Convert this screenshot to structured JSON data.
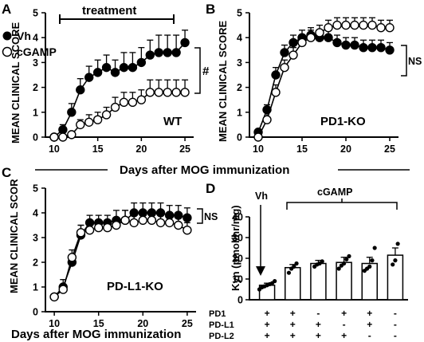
{
  "chart_data": [
    {
      "panel": "A",
      "type": "line",
      "ylabel": "MEAN CLINICAL SCORE",
      "xticks": [
        10,
        15,
        20,
        25
      ],
      "yticks": [
        0,
        1,
        2,
        3,
        4,
        5
      ],
      "xlim": [
        9,
        26
      ],
      "ylim": [
        0,
        5
      ],
      "annotation": "WT",
      "treatment_label": "treatment",
      "significance": "#",
      "legend_placement": "top-left",
      "series": [
        {
          "name": "Vh",
          "marker": "filled",
          "x": [
            10,
            11,
            12,
            13,
            14,
            15,
            16,
            17,
            18,
            19,
            20,
            21,
            22,
            23,
            24,
            25
          ],
          "y": [
            0,
            0.3,
            1.0,
            1.9,
            2.4,
            2.6,
            2.8,
            2.6,
            2.8,
            2.8,
            3.0,
            3.3,
            3.4,
            3.4,
            3.4,
            3.8
          ],
          "err": [
            0,
            0.2,
            0.35,
            0.45,
            0.45,
            0.5,
            0.5,
            0.5,
            0.6,
            0.6,
            0.6,
            0.6,
            0.7,
            0.7,
            0.7,
            0.5
          ]
        },
        {
          "name": "cGAMP",
          "marker": "open",
          "x": [
            10,
            11,
            12,
            13,
            14,
            15,
            16,
            17,
            18,
            19,
            20,
            21,
            22,
            23,
            24,
            25
          ],
          "y": [
            0,
            0,
            0.1,
            0.5,
            0.6,
            0.7,
            0.9,
            1.2,
            1.4,
            1.4,
            1.5,
            1.8,
            1.8,
            1.8,
            1.8,
            1.8
          ],
          "err": [
            0,
            0,
            0.1,
            0.2,
            0.3,
            0.3,
            0.3,
            0.4,
            0.4,
            0.4,
            0.4,
            0.5,
            0.5,
            0.5,
            0.5,
            0.5
          ]
        }
      ]
    },
    {
      "panel": "B",
      "type": "line",
      "ylabel": "MEAN CLINICAL SCORE",
      "xticks": [
        10,
        15,
        20,
        25
      ],
      "yticks": [
        0,
        1,
        2,
        3,
        4,
        5
      ],
      "xlim": [
        9,
        26
      ],
      "ylim": [
        0,
        5
      ],
      "annotation": "PD1-KO",
      "significance": "NS",
      "series": [
        {
          "name": "Vh",
          "marker": "filled",
          "x": [
            10,
            11,
            12,
            13,
            14,
            15,
            16,
            17,
            18,
            19,
            20,
            21,
            22,
            23,
            24,
            25
          ],
          "y": [
            0.2,
            1.1,
            2.5,
            3.4,
            3.8,
            4.0,
            4.1,
            4.0,
            4.0,
            3.8,
            3.7,
            3.7,
            3.6,
            3.6,
            3.6,
            3.5
          ],
          "err": [
            0.1,
            0.2,
            0.3,
            0.3,
            0.3,
            0.3,
            0.3,
            0.3,
            0.3,
            0.3,
            0.3,
            0.3,
            0.3,
            0.3,
            0.3,
            0.3
          ]
        },
        {
          "name": "cGAMP",
          "marker": "open",
          "x": [
            10,
            11,
            12,
            13,
            14,
            15,
            16,
            17,
            18,
            19,
            20,
            21,
            22,
            23,
            24,
            25
          ],
          "y": [
            0,
            0.7,
            1.8,
            2.8,
            3.3,
            3.8,
            4.0,
            4.2,
            4.4,
            4.5,
            4.5,
            4.5,
            4.5,
            4.5,
            4.4,
            4.4
          ],
          "err": [
            0,
            0.3,
            0.3,
            0.3,
            0.3,
            0.3,
            0.3,
            0.3,
            0.3,
            0.3,
            0.3,
            0.3,
            0.3,
            0.3,
            0.3,
            0.3
          ]
        }
      ]
    },
    {
      "panel": "C",
      "type": "line",
      "ylabel": "MEAN CLINICAL SCOR",
      "xticks": [
        10,
        15,
        20,
        25
      ],
      "yticks": [
        0,
        1,
        2,
        3,
        4,
        5
      ],
      "xlim": [
        9,
        26
      ],
      "ylim": [
        0,
        5
      ],
      "annotation": "PD-L1-KO",
      "significance": "NS",
      "series": [
        {
          "name": "Vh",
          "marker": "filled",
          "x": [
            10,
            11,
            12,
            13,
            14,
            15,
            16,
            17,
            18,
            19,
            20,
            21,
            22,
            23,
            24,
            25
          ],
          "y": [
            0.6,
            1.0,
            2.0,
            3.1,
            3.6,
            3.6,
            3.6,
            3.7,
            3.7,
            4.0,
            4.0,
            4.0,
            4.0,
            3.9,
            3.9,
            3.8
          ],
          "err": [
            0.1,
            0.3,
            0.3,
            0.4,
            0.3,
            0.3,
            0.3,
            0.4,
            0.4,
            0.4,
            0.4,
            0.4,
            0.4,
            0.4,
            0.4,
            0.4
          ]
        },
        {
          "name": "cGAMP",
          "marker": "open",
          "x": [
            10,
            11,
            12,
            13,
            14,
            15,
            16,
            17,
            18,
            19,
            20,
            21,
            22,
            23,
            24,
            25
          ],
          "y": [
            0.6,
            0.9,
            2.2,
            3.2,
            3.3,
            3.4,
            3.4,
            3.5,
            3.7,
            3.6,
            3.7,
            3.7,
            3.6,
            3.6,
            3.5,
            3.3
          ],
          "err": [
            0.1,
            0.2,
            0.3,
            0.3,
            0.3,
            0.3,
            0.3,
            0.3,
            0.4,
            0.4,
            0.4,
            0.4,
            0.4,
            0.3,
            0.3,
            0.3
          ]
        }
      ]
    },
    {
      "panel": "D",
      "type": "bar",
      "ylabel": "Kyn (pmol/hr/mg)",
      "yticks": [
        0,
        10,
        20,
        30,
        40
      ],
      "ylim": [
        0,
        40
      ],
      "group_label_vh": "Vh",
      "group_label_treat": "cGAMP",
      "row_labels": [
        "PD1",
        "PD-L1",
        "PD-L2"
      ],
      "genotype_rows": [
        [
          "+",
          "+",
          "-",
          "+",
          "+",
          "-"
        ],
        [
          "+",
          "+",
          "+",
          "-",
          "+",
          "-"
        ],
        [
          "+",
          "+",
          "+",
          "+",
          "-",
          "-"
        ]
      ],
      "values": [
        7,
        15.5,
        17.5,
        18,
        17.5,
        21.5
      ],
      "err": [
        1,
        1.5,
        1.5,
        2.5,
        3,
        3.5
      ],
      "points": [
        [
          5,
          6,
          6.5,
          7,
          7.5,
          8,
          9
        ],
        [
          13,
          15,
          16,
          17.5
        ],
        [
          16,
          17,
          17.5,
          18.5
        ],
        [
          15,
          16.5,
          17.5,
          19.5,
          21
        ],
        [
          14,
          15,
          16,
          19,
          25
        ],
        [
          17,
          19,
          27
        ]
      ]
    }
  ],
  "labels": {
    "panel_a": "A",
    "panel_b": "B",
    "panel_c": "C",
    "panel_d": "D",
    "shared_xlabel": "Days after MOG immunization",
    "c_xlabel": "Days after MOG immunization",
    "legend_vh": "Vh",
    "legend_cgamp": "cGAMP"
  },
  "colors": {
    "ink": "#000000",
    "open_fill": "#ffffff",
    "bar_fill": "#ffffff"
  }
}
